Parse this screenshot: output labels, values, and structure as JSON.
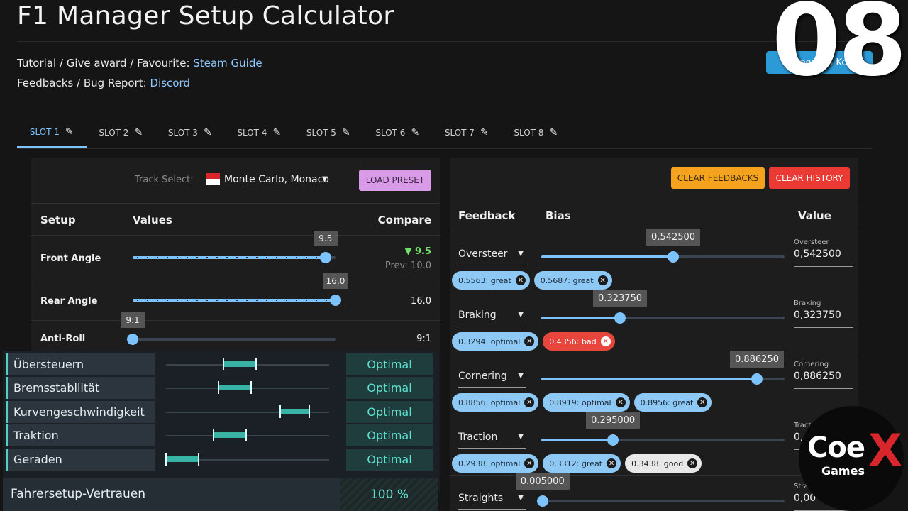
{
  "app": {
    "title": "F1 Manager Setup Calculator",
    "episode": "08"
  },
  "info": {
    "tutorial_prefix": "Tutorial / Give award / Favourite: ",
    "tutorial_link": "Steam Guide",
    "feedback_prefix": "Feedbacks / Bug Report: ",
    "feedback_link": "Discord",
    "support_button": "Support on Ko-fi"
  },
  "tabs": [
    {
      "label": "SLOT 1",
      "active": true
    },
    {
      "label": "SLOT 2"
    },
    {
      "label": "SLOT 3"
    },
    {
      "label": "SLOT 4"
    },
    {
      "label": "SLOT 5"
    },
    {
      "label": "SLOT 6"
    },
    {
      "label": "SLOT 7"
    },
    {
      "label": "SLOT 8"
    }
  ],
  "setup_panel": {
    "track_label": "Track Select:",
    "track_value": "Monte Carlo, Monaco",
    "load_preset": "LOAD PRESET",
    "headers": {
      "setup": "Setup",
      "values": "Values",
      "compare": "Compare"
    },
    "rows": [
      {
        "name": "Front Angle",
        "value": "9.5",
        "fraction": 0.95,
        "compare": "▼ 9.5",
        "prev": "Prev: 10.0"
      },
      {
        "name": "Rear Angle",
        "value": "16.0",
        "fraction": 1.0,
        "compare": "16.0"
      },
      {
        "name": "Anti-Roll",
        "value": "9:1",
        "fraction": 0.0,
        "compare": "9:1"
      }
    ]
  },
  "overlay": {
    "rows": [
      {
        "label": "Übersteuern",
        "status": "Optimal",
        "seg_start": 0.35,
        "seg_end": 0.55
      },
      {
        "label": "Bremsstabilität",
        "status": "Optimal",
        "seg_start": 0.32,
        "seg_end": 0.52
      },
      {
        "label": "Kurvengeschwindigkeit",
        "status": "Optimal",
        "seg_start": 0.7,
        "seg_end": 0.88
      },
      {
        "label": "Traktion",
        "status": "Optimal",
        "seg_start": 0.29,
        "seg_end": 0.49
      },
      {
        "label": "Geraden",
        "status": "Optimal",
        "seg_start": 0.0,
        "seg_end": 0.2
      }
    ],
    "confidence_label": "Fahrersetup-Vertrauen",
    "confidence_value": "100 %"
  },
  "feedback_panel": {
    "clear_feedbacks": "CLEAR FEEDBACKS",
    "clear_history": "CLEAR HISTORY",
    "headers": {
      "feedback": "Feedback",
      "bias": "Bias",
      "value": "Value"
    },
    "rows": [
      {
        "feedback": "Oversteer",
        "tooltip": "0.542500",
        "fraction": 0.5425,
        "value_label": "Oversteer",
        "value": "0,542500",
        "chips": [
          {
            "text": "0.5563: great",
            "color": "blue"
          },
          {
            "text": "0.5687: great",
            "color": "blue"
          }
        ]
      },
      {
        "feedback": "Braking",
        "tooltip": "0.323750",
        "fraction": 0.32375,
        "value_label": "Braking",
        "value": "0,323750",
        "chips": [
          {
            "text": "0.3294: optimal",
            "color": "blue"
          },
          {
            "text": "0.4356: bad",
            "color": "red"
          }
        ]
      },
      {
        "feedback": "Cornering",
        "tooltip": "0.886250",
        "fraction": 0.88625,
        "value_label": "Cornering",
        "value": "0,886250",
        "chips": [
          {
            "text": "0.8856: optimal",
            "color": "blue"
          },
          {
            "text": "0.8919: optimal",
            "color": "blue"
          },
          {
            "text": "0.8956: great",
            "color": "blue"
          }
        ]
      },
      {
        "feedback": "Traction",
        "tooltip": "0.295000",
        "fraction": 0.295,
        "value_label": "Tractio",
        "value": "0,",
        "chips": [
          {
            "text": "0.2938: optimal",
            "color": "blue"
          },
          {
            "text": "0.3312: great",
            "color": "blue"
          },
          {
            "text": "0.3438: good",
            "color": "white"
          }
        ]
      },
      {
        "feedback": "Straights",
        "tooltip": "0.005000",
        "fraction": 0.005,
        "value_label": "Stra",
        "value": "0,00",
        "chips": []
      }
    ]
  },
  "logo": {
    "coe": "Coe",
    "x": "X",
    "games": "Games"
  }
}
